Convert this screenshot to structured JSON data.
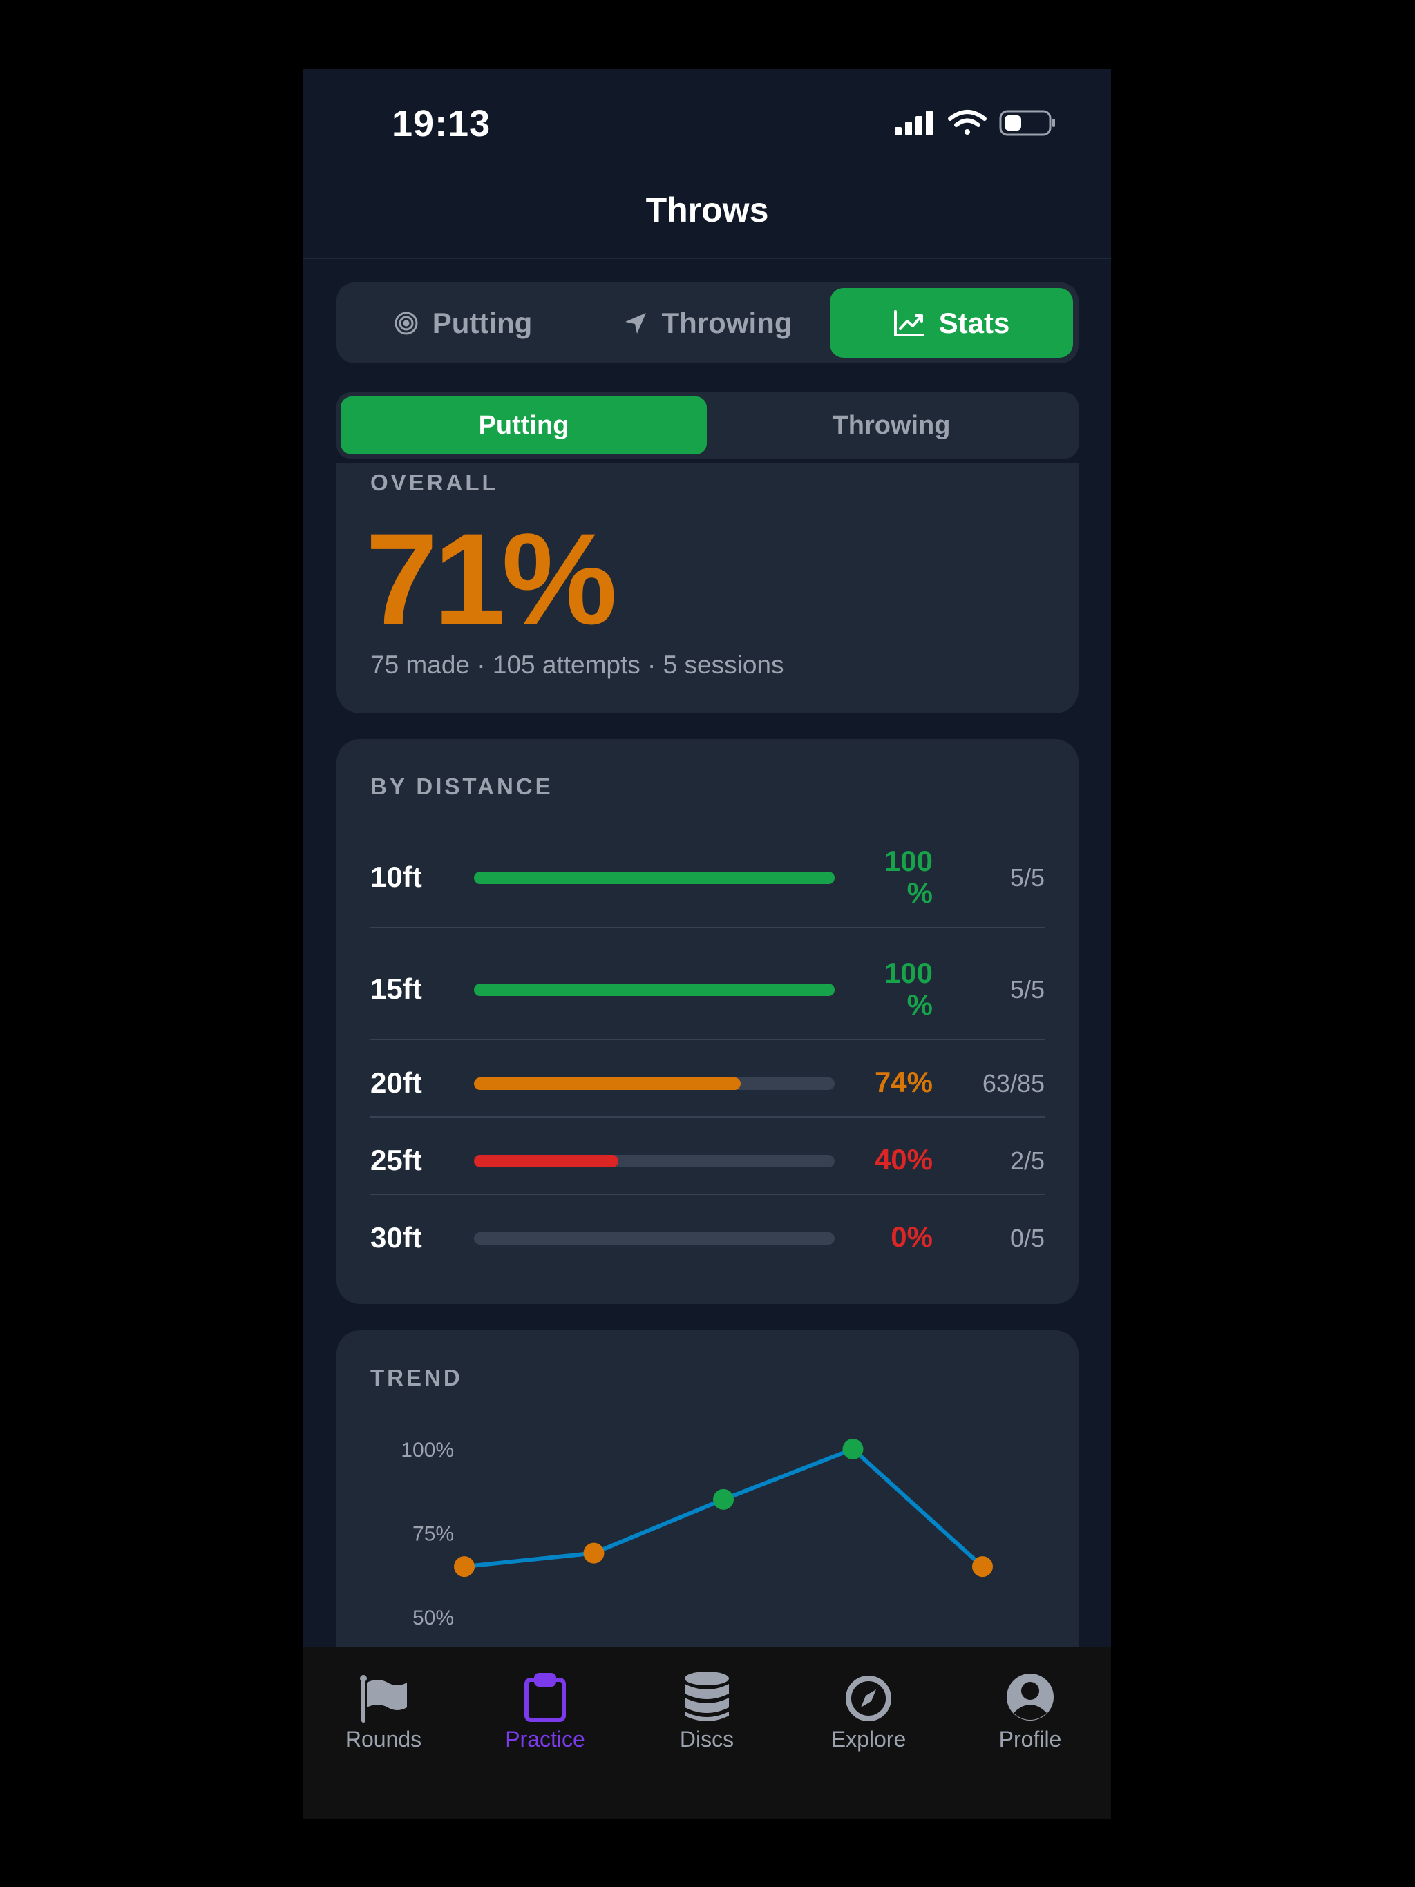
{
  "status_bar": {
    "time": "19:13"
  },
  "header": {
    "title": "Throws"
  },
  "main_tabs": [
    {
      "label": "Putting",
      "icon": "target-icon",
      "active": false
    },
    {
      "label": "Throwing",
      "icon": "navigation-arrow-icon",
      "active": false
    },
    {
      "label": "Stats",
      "icon": "chart-line-icon",
      "active": true
    }
  ],
  "sub_tabs": [
    {
      "label": "Putting",
      "active": true
    },
    {
      "label": "Throwing",
      "active": false
    }
  ],
  "overall": {
    "label": "OVERALL",
    "percent": "71%",
    "summary": "75 made · 105 attempts · 5 sessions"
  },
  "by_distance": {
    "label": "BY DISTANCE",
    "rows": [
      {
        "distance": "10ft",
        "percent": "100 %",
        "value": 1.0,
        "count": "5/5",
        "color": "#16a34a"
      },
      {
        "distance": "15ft",
        "percent": "100 %",
        "value": 1.0,
        "count": "5/5",
        "color": "#16a34a"
      },
      {
        "distance": "20ft",
        "percent": "74%",
        "value": 0.74,
        "count": "63/85",
        "color": "#d97706"
      },
      {
        "distance": "25ft",
        "percent": "40%",
        "value": 0.4,
        "count": "2/5",
        "color": "#dc2626"
      },
      {
        "distance": "30ft",
        "percent": "0%",
        "value": 0.0,
        "count": "0/5",
        "color": "#dc2626"
      }
    ]
  },
  "trend": {
    "label": "TREND",
    "chart_data": {
      "type": "line",
      "y_ticks": [
        "100%",
        "75%",
        "50%"
      ],
      "ylim": [
        50,
        100
      ],
      "series": [
        {
          "values": [
            65,
            69,
            85,
            100,
            65
          ]
        }
      ],
      "line_color": "#0284c7",
      "point_colors": [
        "#d97706",
        "#d97706",
        "#16a34a",
        "#16a34a",
        "#d97706"
      ]
    }
  },
  "bottom_nav": [
    {
      "label": "Rounds",
      "icon": "flag-icon",
      "active": false
    },
    {
      "label": "Practice",
      "icon": "clipboard-icon",
      "active": true
    },
    {
      "label": "Discs",
      "icon": "database-icon",
      "active": false
    },
    {
      "label": "Explore",
      "icon": "compass-icon",
      "active": false
    },
    {
      "label": "Profile",
      "icon": "user-circle-icon",
      "active": false
    }
  ],
  "colors": {
    "background": "#111827",
    "card": "#1f2937",
    "accent_green": "#16a34a",
    "accent_orange": "#d97706",
    "accent_red": "#dc2626",
    "active_nav": "#7c3aed"
  }
}
